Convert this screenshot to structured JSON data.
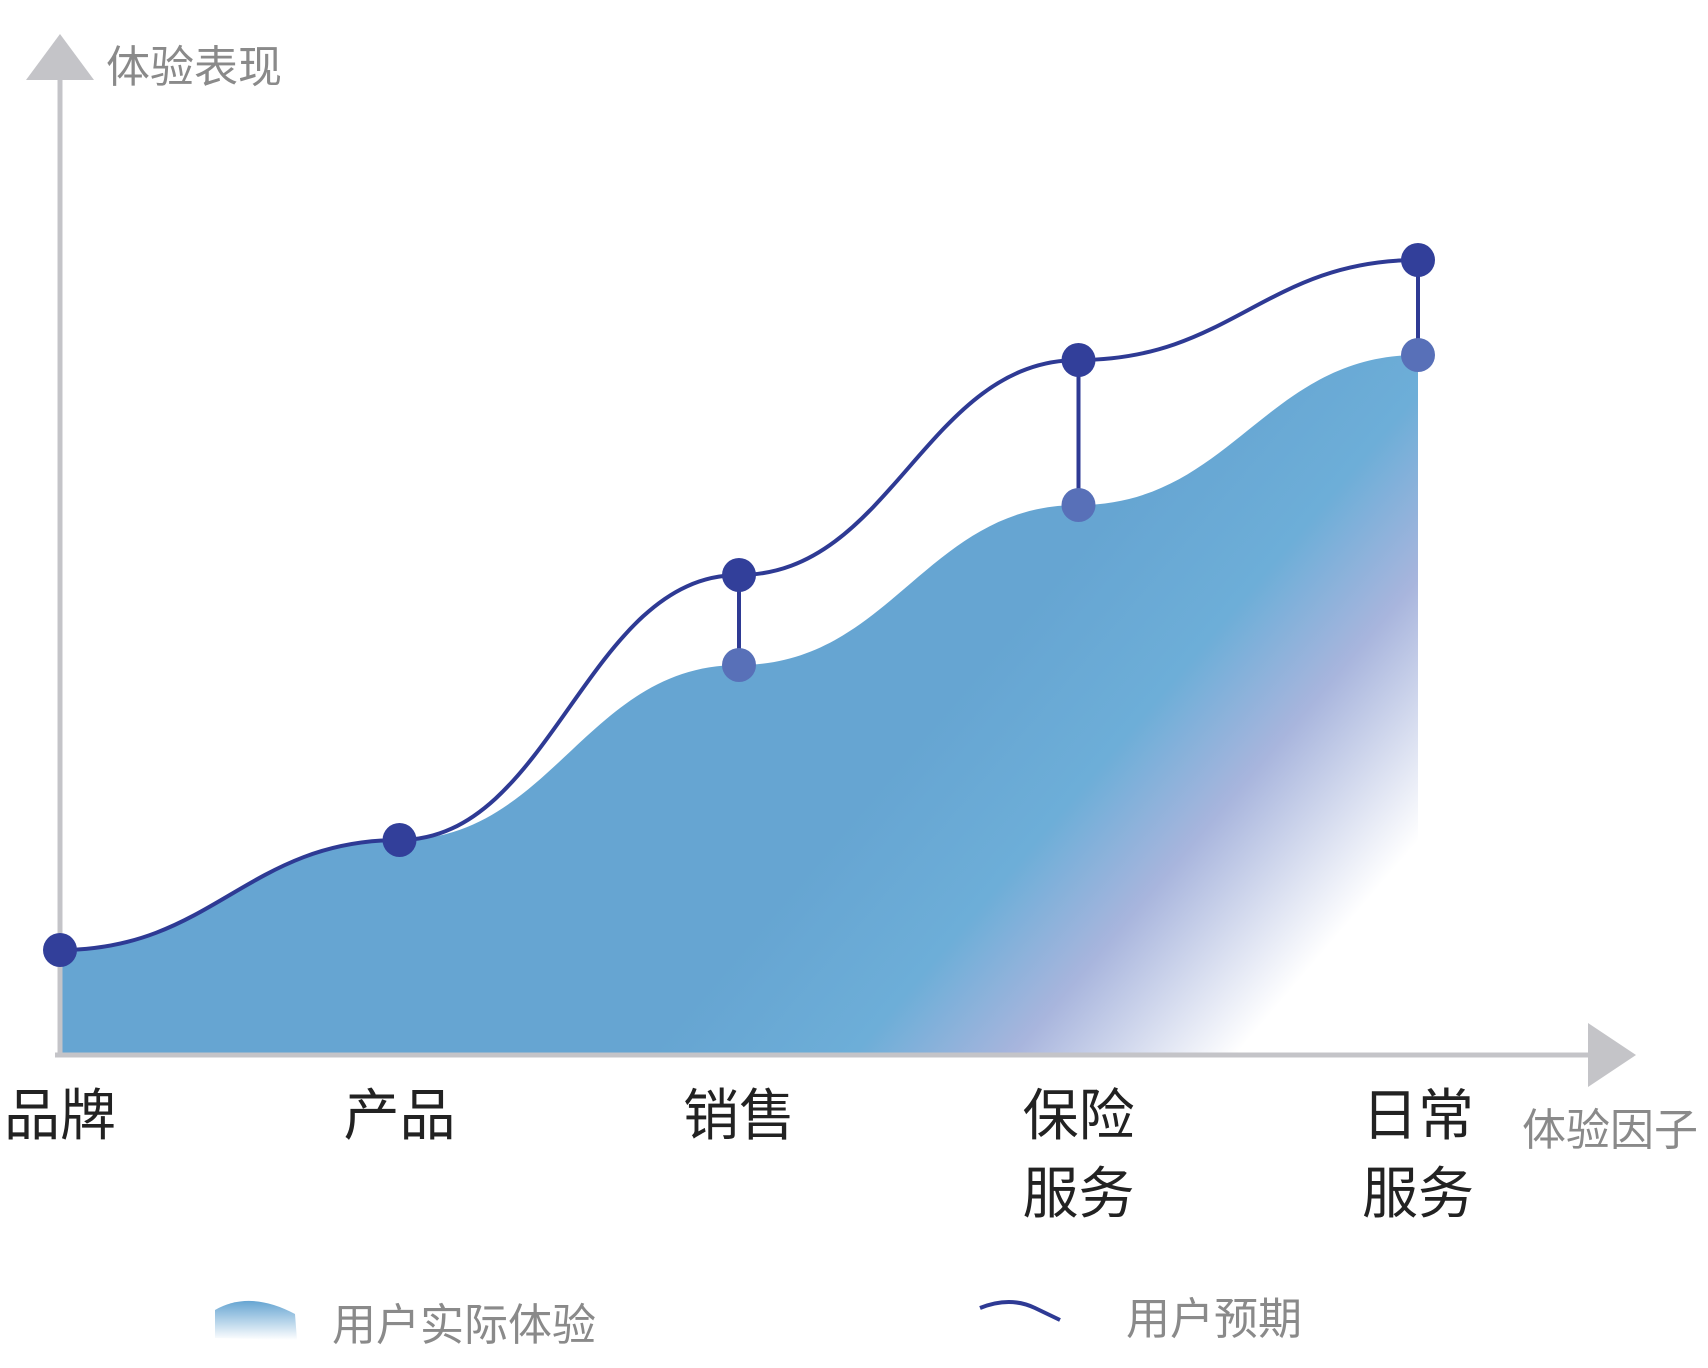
{
  "chart_data": {
    "type": "area",
    "title": "",
    "ylabel": "体验表现",
    "xlabel": "体验因子",
    "categories": [
      [
        "品牌"
      ],
      [
        "产品"
      ],
      [
        "销售"
      ],
      [
        "保险",
        "服务"
      ],
      [
        "日常",
        "服务"
      ]
    ],
    "ylim": [
      0,
      10
    ],
    "series": [
      {
        "name": "用户预期",
        "kind": "line",
        "values": [
          1.05,
          2.15,
          4.8,
          6.95,
          7.95
        ]
      },
      {
        "name": "用户实际体验",
        "kind": "area",
        "values": [
          1.05,
          2.15,
          3.9,
          5.5,
          7.0
        ]
      }
    ],
    "grid": false,
    "legend": "bottom",
    "colors": {
      "axis": "#c4c4c8",
      "expectation_line": "#2e3a94",
      "expectation_point": "#323f9a",
      "actual_point": "#5870b8",
      "area_top": "#66a5d2",
      "area_fade": "#ffffff"
    }
  }
}
